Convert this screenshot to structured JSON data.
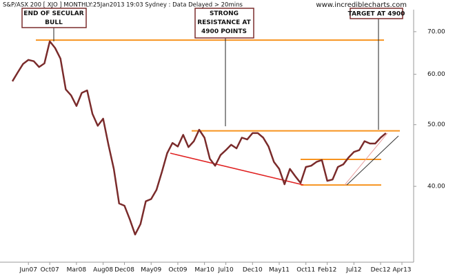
{
  "chart_data": {
    "type": "line",
    "title": "S&P/ASX 200 [ XJO ] MONTHLY:25Jan2013 19:03 Sydney : Data Delayed > 20mins",
    "watermark": "www.incrediblecharts.com",
    "log_scale": true,
    "categories": [
      null,
      null,
      null,
      "Jun07",
      null,
      null,
      null,
      "Oct07",
      null,
      null,
      null,
      null,
      "Mar08",
      null,
      null,
      null,
      null,
      "Aug08",
      null,
      null,
      null,
      "Dec08",
      null,
      null,
      null,
      null,
      "May09",
      null,
      null,
      null,
      null,
      "Oct09",
      null,
      null,
      null,
      null,
      "Mar10",
      null,
      null,
      null,
      "Jul10",
      null,
      null,
      null,
      null,
      "Dec10",
      null,
      null,
      null,
      null,
      "May11",
      null,
      null,
      null,
      null,
      "Oct11",
      null,
      null,
      null,
      "Feb12",
      null,
      null,
      null,
      null,
      "Jul12",
      null,
      null,
      null,
      null,
      "Dec12",
      null,
      null,
      null,
      "Apr13"
    ],
    "series": [
      {
        "name": "XJO",
        "color": "#7a2b2b",
        "values": [
          58.5,
          60.4,
          62.3,
          63.2,
          62.9,
          61.6,
          62.4,
          67.6,
          66.0,
          63.5,
          56.8,
          55.6,
          53.5,
          56.1,
          56.6,
          52.0,
          49.8,
          51.1,
          46.5,
          42.6,
          37.6,
          37.3,
          35.5,
          33.6,
          34.9,
          37.9,
          38.2,
          39.5,
          42.1,
          45.1,
          46.8,
          46.2,
          48.2,
          46.1,
          47.1,
          49.1,
          47.7,
          44.2,
          43.1,
          44.8,
          45.6,
          46.5,
          45.9,
          47.7,
          47.4,
          48.5,
          48.5,
          47.7,
          46.2,
          43.7,
          42.6,
          40.3,
          42.6,
          41.5,
          40.5,
          42.9,
          43.1,
          43.7,
          44.0,
          40.8,
          41.0,
          42.9,
          43.3,
          44.4,
          45.3,
          45.6,
          47.1,
          46.7,
          46.7,
          47.7,
          48.5,
          null,
          null,
          null
        ]
      }
    ],
    "ylim": [
      30.4,
      78.5
    ],
    "yticks": [
      {
        "value": 40,
        "label": "40.00"
      },
      {
        "value": 50,
        "label": "50.00"
      },
      {
        "value": 60,
        "label": "60.00"
      },
      {
        "value": 70,
        "label": "70.00"
      }
    ],
    "hlines": [
      {
        "value": 67.9,
        "color": "#f7931e"
      },
      {
        "value": 48.9,
        "color": "#f7931e"
      },
      {
        "value": 44.1,
        "color": "#f7931e"
      },
      {
        "value": 40.2,
        "color": "#f7931e"
      }
    ],
    "annotations": [
      "END OF SECULAR\nBULL",
      "STRONG\nRESISTANCE AT\n4900 POINTS",
      "TARGET AT 4900"
    ]
  }
}
